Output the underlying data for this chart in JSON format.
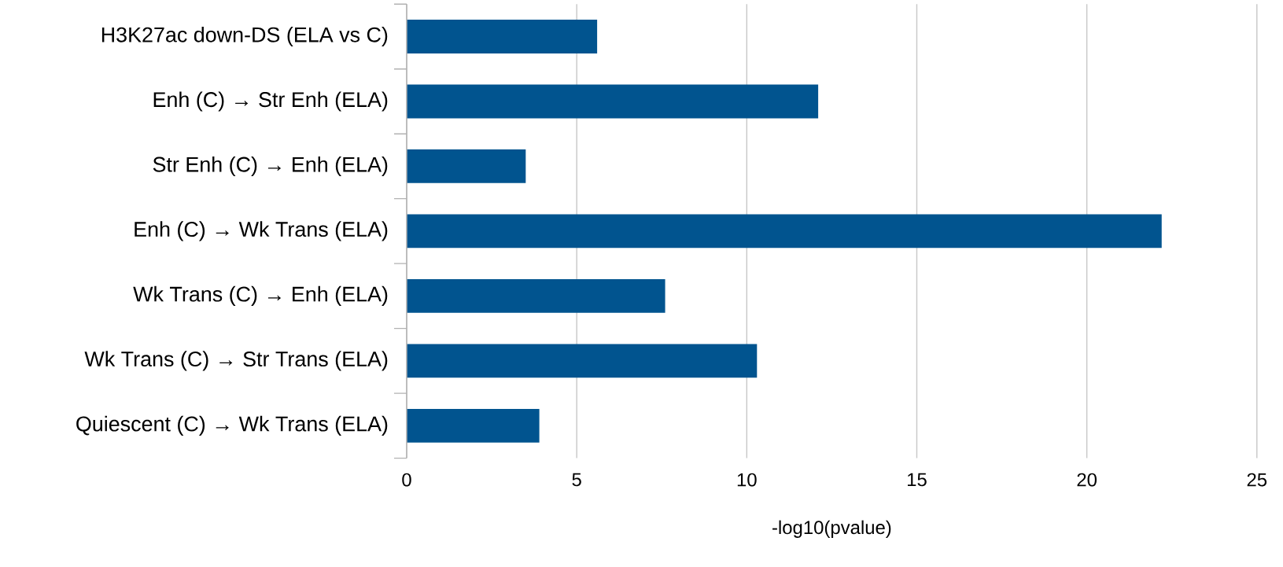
{
  "chart_data": {
    "type": "bar",
    "orientation": "horizontal",
    "categories": [
      "H3K27ac down-DS (ELA vs C)",
      "Enh (C) → Str Enh (ELA)",
      "Str Enh (C) → Enh (ELA)",
      "Enh (C) → Wk Trans (ELA)",
      "Wk Trans (C) → Enh (ELA)",
      "Wk Trans (C) → Str Trans (ELA)",
      "Quiescent (C) → Wk Trans (ELA)"
    ],
    "values": [
      5.6,
      12.1,
      3.5,
      22.2,
      7.6,
      10.3,
      3.9
    ],
    "color": "#01548f",
    "xlabel": "-log10(pvalue)",
    "xlim": [
      0,
      25
    ],
    "xticks": [
      0,
      5,
      10,
      15,
      20,
      25
    ],
    "grid": "x"
  }
}
